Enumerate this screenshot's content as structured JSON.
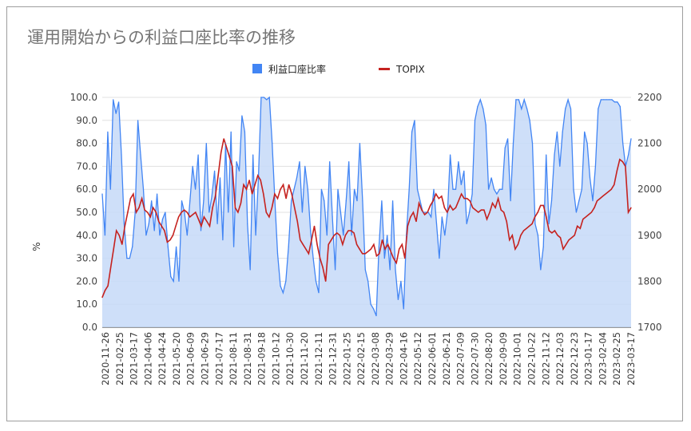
{
  "chart_data": {
    "type": "area",
    "title": "運用開始からの利益口座比率の推移",
    "ylabel": "%",
    "y2label": "",
    "ylim": [
      0,
      100
    ],
    "y2lim": [
      1700,
      2200
    ],
    "yticks": [
      "100.0",
      "90.0",
      "80.0",
      "70.0",
      "60.0",
      "50.0",
      "40.0",
      "30.0",
      "20.0",
      "10.0",
      "0.0"
    ],
    "y2ticks": [
      "2200",
      "2100",
      "2000",
      "1900",
      "1800",
      "1700"
    ],
    "x_tick_labels": [
      "2020-11-26",
      "2021-02-25",
      "2021-03-17",
      "2021-04-06",
      "2021-04-24",
      "2021-05-20",
      "2021-06-09",
      "2021-06-29",
      "2021-07-17",
      "2021-08-11",
      "2021-08-31",
      "2021-09-18",
      "2021-10-12",
      "2021-10-30",
      "2021-11-20",
      "2021-12-11",
      "2021-12-31",
      "2022-01-25",
      "2022-02-15",
      "2022-03-08",
      "2022-03-29",
      "2022-04-16",
      "2022-05-12",
      "2022-06-01",
      "2022-06-21",
      "2022-07-09",
      "2022-07-30",
      "2022-08-20",
      "2022-09-09",
      "2022-10-01",
      "2022-10-22",
      "2022-11-12",
      "2022-12-03",
      "2022-12-23",
      "2023-01-17",
      "2023-02-04",
      "2023-02-25",
      "2023-03-17"
    ],
    "legend_position": "top",
    "grid": true,
    "series": [
      {
        "name": "利益口座比率",
        "type": "area",
        "axis": "left",
        "color": "#4285f4",
        "fill": "#c6d9f8",
        "values": [
          58,
          40,
          85,
          60,
          99,
          93,
          98,
          75,
          45,
          30,
          30,
          35,
          50,
          90,
          75,
          60,
          40,
          45,
          55,
          42,
          58,
          40,
          47,
          50,
          35,
          22,
          20,
          35,
          20,
          55,
          50,
          40,
          55,
          70,
          60,
          75,
          42,
          55,
          80,
          50,
          57,
          68,
          45,
          65,
          38,
          80,
          50,
          85,
          35,
          72,
          68,
          92,
          85,
          45,
          25,
          75,
          40,
          65,
          100,
          100,
          99,
          100,
          80,
          55,
          32,
          18,
          15,
          20,
          35,
          55,
          60,
          65,
          72,
          50,
          70,
          60,
          42,
          30,
          20,
          15,
          60,
          55,
          40,
          72,
          48,
          25,
          60,
          50,
          40,
          55,
          72,
          40,
          60,
          55,
          80,
          55,
          25,
          20,
          10,
          8,
          5,
          35,
          55,
          30,
          40,
          25,
          55,
          25,
          12,
          20,
          8,
          40,
          60,
          85,
          90,
          60,
          55,
          50,
          50,
          50,
          48,
          60,
          45,
          30,
          48,
          40,
          50,
          75,
          60,
          60,
          72,
          62,
          68,
          45,
          50,
          58,
          90,
          96,
          99,
          95,
          88,
          60,
          65,
          60,
          58,
          60,
          60,
          78,
          82,
          55,
          80,
          99,
          99,
          95,
          99,
          95,
          90,
          80,
          45,
          40,
          25,
          35,
          75,
          45,
          55,
          75,
          85,
          70,
          85,
          95,
          99,
          95,
          60,
          50,
          55,
          60,
          85,
          80,
          65,
          55,
          70,
          95,
          99,
          99,
          99,
          99,
          99,
          98,
          98,
          96,
          80,
          70,
          75,
          82
        ]
      },
      {
        "name": "TOPIX",
        "type": "line",
        "axis": "right",
        "color": "#c5221f",
        "values": [
          1765,
          1780,
          1790,
          1830,
          1870,
          1910,
          1900,
          1880,
          1920,
          1950,
          1980,
          1990,
          1950,
          1960,
          1980,
          1955,
          1950,
          1940,
          1960,
          1950,
          1930,
          1920,
          1910,
          1885,
          1890,
          1900,
          1920,
          1940,
          1950,
          1955,
          1950,
          1940,
          1945,
          1950,
          1935,
          1920,
          1940,
          1930,
          1920,
          1960,
          1985,
          2030,
          2080,
          2110,
          2090,
          2070,
          2050,
          1960,
          1950,
          1970,
          2010,
          2000,
          2020,
          1990,
          2010,
          2030,
          2020,
          1990,
          1950,
          1940,
          1960,
          1990,
          1980,
          2000,
          2010,
          1980,
          2010,
          1990,
          1960,
          1930,
          1890,
          1880,
          1870,
          1860,
          1890,
          1920,
          1880,
          1850,
          1830,
          1800,
          1880,
          1890,
          1900,
          1905,
          1900,
          1880,
          1900,
          1910,
          1910,
          1905,
          1880,
          1870,
          1860,
          1860,
          1865,
          1870,
          1880,
          1855,
          1860,
          1890,
          1870,
          1880,
          1865,
          1850,
          1840,
          1870,
          1880,
          1850,
          1920,
          1940,
          1950,
          1930,
          1970,
          1955,
          1945,
          1950,
          1965,
          1975,
          1990,
          1980,
          1985,
          1960,
          1950,
          1965,
          1955,
          1960,
          1975,
          1990,
          1980,
          1980,
          1975,
          1960,
          1955,
          1950,
          1955,
          1955,
          1935,
          1950,
          1970,
          1960,
          1980,
          1955,
          1950,
          1930,
          1890,
          1900,
          1870,
          1880,
          1900,
          1910,
          1915,
          1920,
          1925,
          1940,
          1950,
          1965,
          1965,
          1940,
          1910,
          1905,
          1910,
          1900,
          1895,
          1870,
          1880,
          1890,
          1895,
          1900,
          1920,
          1915,
          1935,
          1940,
          1945,
          1950,
          1960,
          1975,
          1980,
          1985,
          1990,
          1995,
          2000,
          2010,
          2040,
          2065,
          2060,
          2050,
          1950,
          1960
        ]
      }
    ]
  }
}
